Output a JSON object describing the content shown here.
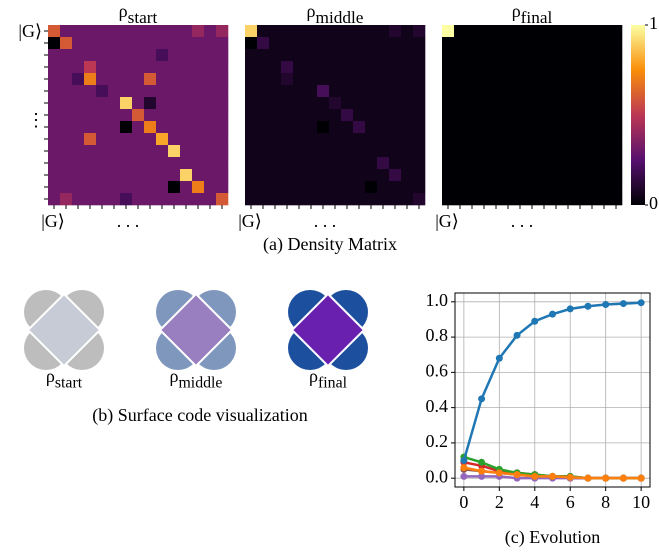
{
  "chart_data": [
    {
      "type": "heatmap",
      "caption": "(a) Density Matrix",
      "axis_label": "|G⟩",
      "x_ellipsis": ". . .",
      "y_ellipsis": "⋮",
      "colorbar": {
        "lim": [
          0,
          1
        ],
        "ticks": [
          0,
          1
        ]
      },
      "panels": [
        {
          "title": {
            "symbol": "ρ",
            "sub": "start"
          },
          "values": [
            [
              0.6,
              0.3,
              0.3,
              0.3,
              0.3,
              0.3,
              0.3,
              0.3,
              0.3,
              0.3,
              0.3,
              0.3,
              0.4,
              0.3,
              0.4
            ],
            [
              0.0,
              0.6,
              0.3,
              0.3,
              0.3,
              0.3,
              0.3,
              0.3,
              0.3,
              0.3,
              0.3,
              0.3,
              0.3,
              0.3,
              0.3
            ],
            [
              0.3,
              0.3,
              0.3,
              0.3,
              0.3,
              0.3,
              0.3,
              0.3,
              0.3,
              0.2,
              0.3,
              0.3,
              0.3,
              0.3,
              0.3
            ],
            [
              0.3,
              0.3,
              0.3,
              0.5,
              0.3,
              0.3,
              0.3,
              0.3,
              0.3,
              0.3,
              0.3,
              0.3,
              0.3,
              0.3,
              0.3
            ],
            [
              0.3,
              0.3,
              0.2,
              0.7,
              0.3,
              0.3,
              0.3,
              0.3,
              0.6,
              0.3,
              0.3,
              0.3,
              0.3,
              0.3,
              0.3
            ],
            [
              0.3,
              0.3,
              0.3,
              0.3,
              0.2,
              0.3,
              0.3,
              0.3,
              0.3,
              0.3,
              0.3,
              0.3,
              0.3,
              0.3,
              0.3
            ],
            [
              0.3,
              0.3,
              0.3,
              0.3,
              0.3,
              0.3,
              0.9,
              0.3,
              0.1,
              0.3,
              0.3,
              0.3,
              0.3,
              0.3,
              0.3
            ],
            [
              0.3,
              0.3,
              0.3,
              0.3,
              0.3,
              0.3,
              0.3,
              0.6,
              0.3,
              0.3,
              0.3,
              0.3,
              0.3,
              0.3,
              0.3
            ],
            [
              0.3,
              0.3,
              0.3,
              0.3,
              0.3,
              0.3,
              0.0,
              0.3,
              0.7,
              0.3,
              0.3,
              0.3,
              0.3,
              0.3,
              0.3
            ],
            [
              0.3,
              0.3,
              0.3,
              0.6,
              0.3,
              0.3,
              0.3,
              0.3,
              0.3,
              0.8,
              0.3,
              0.3,
              0.3,
              0.3,
              0.3
            ],
            [
              0.3,
              0.3,
              0.3,
              0.3,
              0.3,
              0.3,
              0.3,
              0.3,
              0.3,
              0.3,
              0.9,
              0.3,
              0.3,
              0.3,
              0.3
            ],
            [
              0.3,
              0.3,
              0.3,
              0.3,
              0.3,
              0.3,
              0.3,
              0.3,
              0.3,
              0.3,
              0.3,
              0.3,
              0.3,
              0.3,
              0.3
            ],
            [
              0.3,
              0.3,
              0.3,
              0.3,
              0.3,
              0.3,
              0.3,
              0.3,
              0.3,
              0.3,
              0.3,
              0.9,
              0.3,
              0.3,
              0.3
            ],
            [
              0.3,
              0.3,
              0.3,
              0.3,
              0.3,
              0.3,
              0.3,
              0.3,
              0.3,
              0.3,
              0.0,
              0.3,
              0.7,
              0.3,
              0.3
            ],
            [
              0.3,
              0.4,
              0.3,
              0.3,
              0.3,
              0.3,
              0.2,
              0.3,
              0.3,
              0.3,
              0.3,
              0.3,
              0.3,
              0.3,
              0.6
            ]
          ]
        },
        {
          "title": {
            "symbol": "ρ",
            "sub": "middle"
          },
          "values": [
            [
              0.9,
              0.05,
              0.05,
              0.05,
              0.05,
              0.05,
              0.05,
              0.05,
              0.05,
              0.05,
              0.05,
              0.05,
              0.1,
              0.05,
              0.1
            ],
            [
              0.0,
              0.15,
              0.05,
              0.05,
              0.05,
              0.05,
              0.05,
              0.05,
              0.05,
              0.05,
              0.05,
              0.05,
              0.05,
              0.05,
              0.05
            ],
            [
              0.05,
              0.05,
              0.05,
              0.05,
              0.05,
              0.05,
              0.05,
              0.05,
              0.05,
              0.05,
              0.05,
              0.05,
              0.05,
              0.05,
              0.05
            ],
            [
              0.05,
              0.05,
              0.05,
              0.15,
              0.05,
              0.05,
              0.05,
              0.05,
              0.05,
              0.05,
              0.05,
              0.05,
              0.05,
              0.05,
              0.05
            ],
            [
              0.05,
              0.05,
              0.05,
              0.1,
              0.05,
              0.05,
              0.05,
              0.05,
              0.05,
              0.05,
              0.05,
              0.05,
              0.05,
              0.05,
              0.05
            ],
            [
              0.05,
              0.05,
              0.05,
              0.05,
              0.05,
              0.05,
              0.2,
              0.05,
              0.05,
              0.05,
              0.05,
              0.05,
              0.05,
              0.05,
              0.05
            ],
            [
              0.05,
              0.05,
              0.05,
              0.05,
              0.05,
              0.05,
              0.05,
              0.1,
              0.05,
              0.05,
              0.05,
              0.05,
              0.05,
              0.05,
              0.05
            ],
            [
              0.05,
              0.05,
              0.05,
              0.05,
              0.05,
              0.05,
              0.05,
              0.05,
              0.15,
              0.05,
              0.05,
              0.05,
              0.05,
              0.05,
              0.05
            ],
            [
              0.05,
              0.05,
              0.05,
              0.05,
              0.05,
              0.05,
              0.0,
              0.05,
              0.05,
              0.15,
              0.05,
              0.05,
              0.05,
              0.05,
              0.05
            ],
            [
              0.05,
              0.05,
              0.05,
              0.05,
              0.05,
              0.05,
              0.05,
              0.05,
              0.05,
              0.05,
              0.05,
              0.05,
              0.05,
              0.05,
              0.05
            ],
            [
              0.05,
              0.05,
              0.05,
              0.05,
              0.05,
              0.05,
              0.05,
              0.05,
              0.05,
              0.05,
              0.05,
              0.05,
              0.05,
              0.05,
              0.05
            ],
            [
              0.05,
              0.05,
              0.05,
              0.05,
              0.05,
              0.05,
              0.05,
              0.05,
              0.05,
              0.05,
              0.05,
              0.15,
              0.05,
              0.05,
              0.05
            ],
            [
              0.05,
              0.05,
              0.05,
              0.05,
              0.05,
              0.05,
              0.05,
              0.05,
              0.05,
              0.05,
              0.05,
              0.05,
              0.15,
              0.05,
              0.05
            ],
            [
              0.05,
              0.05,
              0.05,
              0.05,
              0.05,
              0.05,
              0.05,
              0.05,
              0.05,
              0.05,
              0.0,
              0.05,
              0.05,
              0.05,
              0.05
            ],
            [
              0.05,
              0.05,
              0.05,
              0.05,
              0.05,
              0.05,
              0.05,
              0.05,
              0.05,
              0.05,
              0.05,
              0.05,
              0.05,
              0.05,
              0.1
            ]
          ]
        },
        {
          "title": {
            "symbol": "ρ",
            "sub": "final"
          },
          "values": [
            [
              1,
              0,
              0,
              0,
              0,
              0,
              0,
              0,
              0,
              0,
              0,
              0,
              0,
              0,
              0
            ],
            [
              0,
              0,
              0,
              0,
              0,
              0,
              0,
              0,
              0,
              0,
              0,
              0,
              0,
              0,
              0
            ],
            [
              0,
              0,
              0,
              0,
              0,
              0,
              0,
              0,
              0,
              0,
              0,
              0,
              0,
              0,
              0
            ],
            [
              0,
              0,
              0,
              0,
              0,
              0,
              0,
              0,
              0,
              0,
              0,
              0,
              0,
              0,
              0
            ],
            [
              0,
              0,
              0,
              0,
              0,
              0,
              0,
              0,
              0,
              0,
              0,
              0,
              0,
              0,
              0
            ],
            [
              0,
              0,
              0,
              0,
              0,
              0,
              0,
              0,
              0,
              0,
              0,
              0,
              0,
              0,
              0
            ],
            [
              0,
              0,
              0,
              0,
              0,
              0,
              0,
              0,
              0,
              0,
              0,
              0,
              0,
              0,
              0
            ],
            [
              0,
              0,
              0,
              0,
              0,
              0,
              0,
              0,
              0,
              0,
              0,
              0,
              0,
              0,
              0
            ],
            [
              0,
              0,
              0,
              0,
              0,
              0,
              0,
              0,
              0,
              0,
              0,
              0,
              0,
              0,
              0
            ],
            [
              0,
              0,
              0,
              0,
              0,
              0,
              0,
              0,
              0,
              0,
              0,
              0,
              0,
              0,
              0
            ],
            [
              0,
              0,
              0,
              0,
              0,
              0,
              0,
              0,
              0,
              0,
              0,
              0,
              0,
              0,
              0
            ],
            [
              0,
              0,
              0,
              0,
              0,
              0,
              0,
              0,
              0,
              0,
              0,
              0,
              0,
              0,
              0
            ],
            [
              0,
              0,
              0,
              0,
              0,
              0,
              0,
              0,
              0,
              0,
              0,
              0,
              0,
              0,
              0
            ],
            [
              0,
              0,
              0,
              0,
              0,
              0,
              0,
              0,
              0,
              0,
              0,
              0,
              0,
              0,
              0
            ],
            [
              0,
              0,
              0,
              0,
              0,
              0,
              0,
              0,
              0,
              0,
              0,
              0,
              0,
              0,
              0
            ]
          ]
        }
      ]
    },
    {
      "type": "line",
      "caption": "(c) Evolution",
      "grid": true,
      "x": [
        0,
        1,
        2,
        3,
        4,
        5,
        6,
        7,
        8,
        9,
        10
      ],
      "xlim": [
        -0.5,
        10.5
      ],
      "xticks": [
        0,
        2,
        4,
        6,
        8,
        10
      ],
      "ylim": [
        -0.05,
        1.05
      ],
      "yticks": [
        {
          "value": 0,
          "label": "0.0"
        },
        0.2,
        0.4,
        0.6,
        0.8,
        {
          "value": 1,
          "label": "1.0"
        }
      ],
      "series": [
        {
          "color": "#1f77b4",
          "values": [
            0.1,
            0.45,
            0.68,
            0.81,
            0.89,
            0.93,
            0.96,
            0.975,
            0.985,
            0.99,
            0.995
          ]
        },
        {
          "color": "#ff7f0e",
          "values": [
            0.06,
            0.04,
            0.03,
            0.02,
            0.01,
            0.01,
            0.005,
            0,
            0,
            0,
            0
          ]
        },
        {
          "color": "#2ca02c",
          "values": [
            0.12,
            0.09,
            0.05,
            0.03,
            0.02,
            0.01,
            0.01,
            0,
            0,
            0,
            0
          ]
        },
        {
          "color": "#d62728",
          "values": [
            0.09,
            0.07,
            0.04,
            0.03,
            0.02,
            0.01,
            0.01,
            0,
            0,
            0,
            0
          ]
        },
        {
          "color": "#9467bd",
          "values": [
            0.01,
            0.01,
            0.01,
            0,
            0,
            0,
            0,
            0,
            0,
            0,
            0
          ]
        },
        {
          "color": "#8c564b",
          "values": [
            0.05,
            0.04,
            0.03,
            0.02,
            0.01,
            0.01,
            0,
            0,
            0,
            0,
            0
          ]
        }
      ]
    }
  ],
  "surface_code": {
    "caption": "(b) Surface code visualization",
    "items": [
      {
        "label": {
          "symbol": "ρ",
          "sub": "start"
        },
        "petal_color": "#bdbdbd",
        "center_color": "#c6cbd6"
      },
      {
        "label": {
          "symbol": "ρ",
          "sub": "middle"
        },
        "petal_color": "#7f97bd",
        "center_color": "#9a7fc0"
      },
      {
        "label": {
          "symbol": "ρ",
          "sub": "final"
        },
        "petal_color": "#1d4f9f",
        "center_color": "#6a20ae"
      }
    ]
  }
}
